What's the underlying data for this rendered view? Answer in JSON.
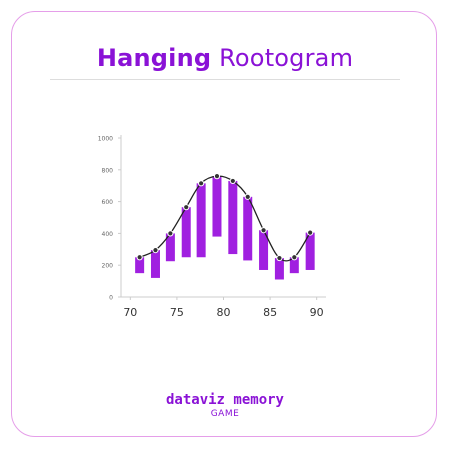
{
  "header": {
    "title_bold": "Hanging",
    "title_light": "Rootogram"
  },
  "footer": {
    "brand": "dataviz memory",
    "subtitle": "GAME"
  },
  "colors": {
    "accent": "#8a12d6",
    "bar": "#a020e0",
    "curve": "#222222",
    "border": "#e59ee9"
  },
  "chart_data": {
    "type": "bar",
    "variant": "hanging-rootogram",
    "title": "",
    "xlabel": "",
    "ylabel": "",
    "xlim": [
      69,
      91
    ],
    "ylim": [
      0,
      1000
    ],
    "x_ticks": [
      70,
      75,
      80,
      85,
      90
    ],
    "y_ticks": [
      0,
      200,
      400,
      600,
      800,
      1000
    ],
    "x": [
      71,
      72.7,
      74.3,
      76,
      77.6,
      79.3,
      81,
      82.6,
      84.3,
      86,
      87.6,
      89.3
    ],
    "expected": [
      250,
      295,
      400,
      565,
      715,
      760,
      730,
      630,
      420,
      245,
      250,
      405
    ],
    "bar_bottom": [
      150,
      120,
      225,
      250,
      250,
      380,
      270,
      230,
      170,
      110,
      150,
      170
    ],
    "grid": false
  }
}
